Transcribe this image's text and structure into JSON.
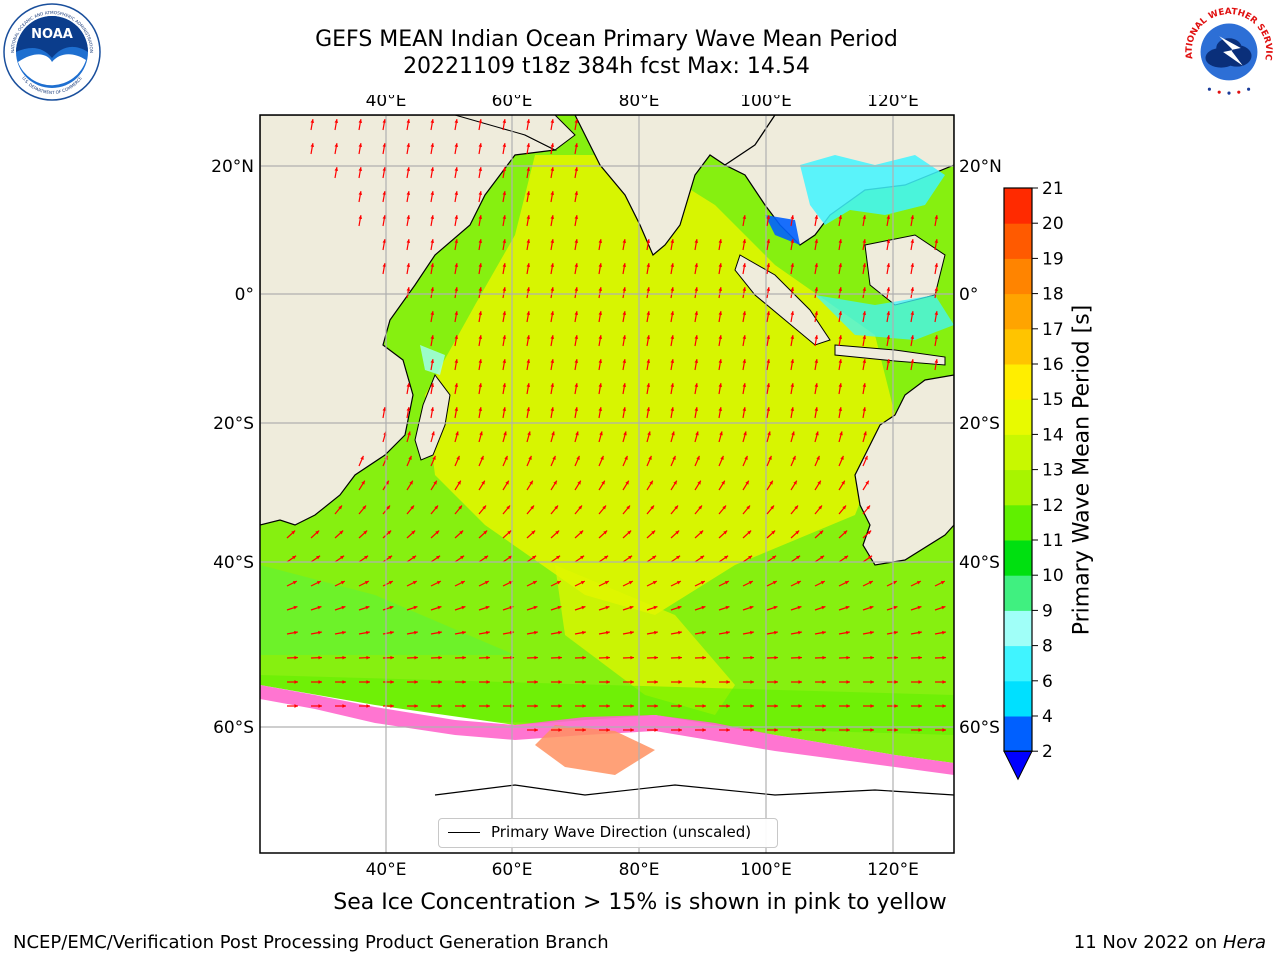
{
  "header": {
    "title_line1": "GEFS MEAN Indian Ocean Primary Wave Mean Period",
    "title_line2": "20221109 t18z 384h fcst   Max: 14.54"
  },
  "logos": {
    "noaa": {
      "text": "NOAA",
      "ring_top": "NATIONAL OCEANIC AND ATMOSPHERIC ADMINISTRATION",
      "ring_bottom": "U.S. DEPARTMENT OF COMMERCE"
    },
    "nws": {
      "ring": "NATIONAL WEATHER SERVICE"
    }
  },
  "map": {
    "lon_ticks": [
      "40°E",
      "60°E",
      "80°E",
      "100°E",
      "120°E"
    ],
    "lat_ticks": [
      "20°N",
      "0°",
      "20°S",
      "40°S",
      "60°S"
    ],
    "legend_label": "Primary Wave Direction (unscaled)",
    "colors": {
      "land": "#efecdc",
      "ocean_mid": "#e0f500",
      "arrow": "#ff0000",
      "ice": "#ff66cc"
    }
  },
  "colorbar": {
    "label": "Primary Wave Mean Period [s]",
    "ticks": [
      "2",
      "4",
      "6",
      "8",
      "9",
      "10",
      "11",
      "12",
      "13",
      "14",
      "15",
      "16",
      "17",
      "18",
      "19",
      "20",
      "21"
    ],
    "colors": [
      "#0060ff",
      "#00e0ff",
      "#40f4ff",
      "#a0fff8",
      "#40f080",
      "#00e010",
      "#60f000",
      "#a8f400",
      "#c8f800",
      "#e8fa00",
      "#ffee00",
      "#ffc400",
      "#ffa400",
      "#ff8400",
      "#ff5a00",
      "#ff2a00"
    ],
    "extend_color": "#0000ff"
  },
  "caption": "Sea Ice Concentration > 15% is shown in pink to yellow",
  "footer": {
    "left": "NCEP/EMC/Verification Post Processing Product Generation Branch",
    "right_prefix": "11 Nov 2022 on ",
    "right_italic": "Hera"
  }
}
